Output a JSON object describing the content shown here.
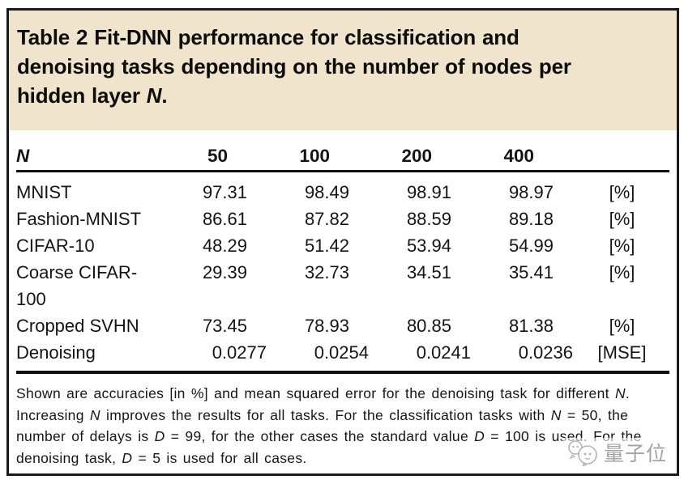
{
  "colors": {
    "caption_bg": "#f0e5cc",
    "border": "#1a1a1a",
    "text": "#141414",
    "watermark": "#a3a3a3"
  },
  "title_segments": [
    [
      {
        "t": "Table 2 Fit-DNN performance for classification and"
      }
    ],
    [
      {
        "t": "denoising tasks depending on the number of nodes per"
      }
    ],
    [
      {
        "t": "hidden layer "
      },
      {
        "t": "N",
        "i": true
      },
      {
        "t": "."
      }
    ]
  ],
  "table": {
    "columns": [
      {
        "label": "N",
        "italic": true,
        "type": "label"
      },
      {
        "label": "50",
        "type": "num"
      },
      {
        "label": "100",
        "type": "num"
      },
      {
        "label": "200",
        "type": "num"
      },
      {
        "label": "400",
        "type": "num"
      },
      {
        "label": "",
        "type": "unit"
      }
    ],
    "rows": [
      {
        "task": "MNIST",
        "values": [
          "97.31",
          "98.49",
          "98.91",
          "98.97"
        ],
        "unit": "[%]"
      },
      {
        "task": "Fashion-MNIST",
        "values": [
          "86.61",
          "87.82",
          "88.59",
          "89.18"
        ],
        "unit": "[%]"
      },
      {
        "task": "CIFAR-10",
        "values": [
          "48.29",
          "51.42",
          "53.94",
          "54.99"
        ],
        "unit": "[%]"
      },
      {
        "task": "Coarse CIFAR-\n100",
        "values": [
          "29.39",
          "32.73",
          "34.51",
          "35.41"
        ],
        "unit": "[%]"
      },
      {
        "task": "Cropped SVHN",
        "values": [
          "73.45",
          "78.93",
          "80.85",
          "81.38"
        ],
        "unit": "[%]"
      },
      {
        "task": "Denoising",
        "values": [
          "0.0277",
          "0.0254",
          "0.0241",
          "0.0236"
        ],
        "unit": "[MSE]"
      }
    ]
  },
  "footnote_segments": [
    [
      {
        "t": "Shown are accuracies [in %] and mean squared error for the denoising task for different "
      },
      {
        "t": "N",
        "i": true
      },
      {
        "t": "."
      }
    ],
    [
      {
        "t": "Increasing "
      },
      {
        "t": "N",
        "i": true
      },
      {
        "t": " improves the results for all tasks. For the classification tasks with "
      },
      {
        "t": "N",
        "i": true
      },
      {
        "t": " = 50, the"
      }
    ],
    [
      {
        "t": "number of delays is "
      },
      {
        "t": "D",
        "i": true
      },
      {
        "t": " = 99, for the other cases the standard value "
      },
      {
        "t": "D",
        "i": true
      },
      {
        "t": " = 100 is used. For the"
      }
    ],
    [
      {
        "t": "denoising task, "
      },
      {
        "t": "D",
        "i": true
      },
      {
        "t": " = 5 is used for all cases."
      }
    ]
  ],
  "watermark": {
    "text": "量子位",
    "icon": "qbitai-faces-logo"
  }
}
